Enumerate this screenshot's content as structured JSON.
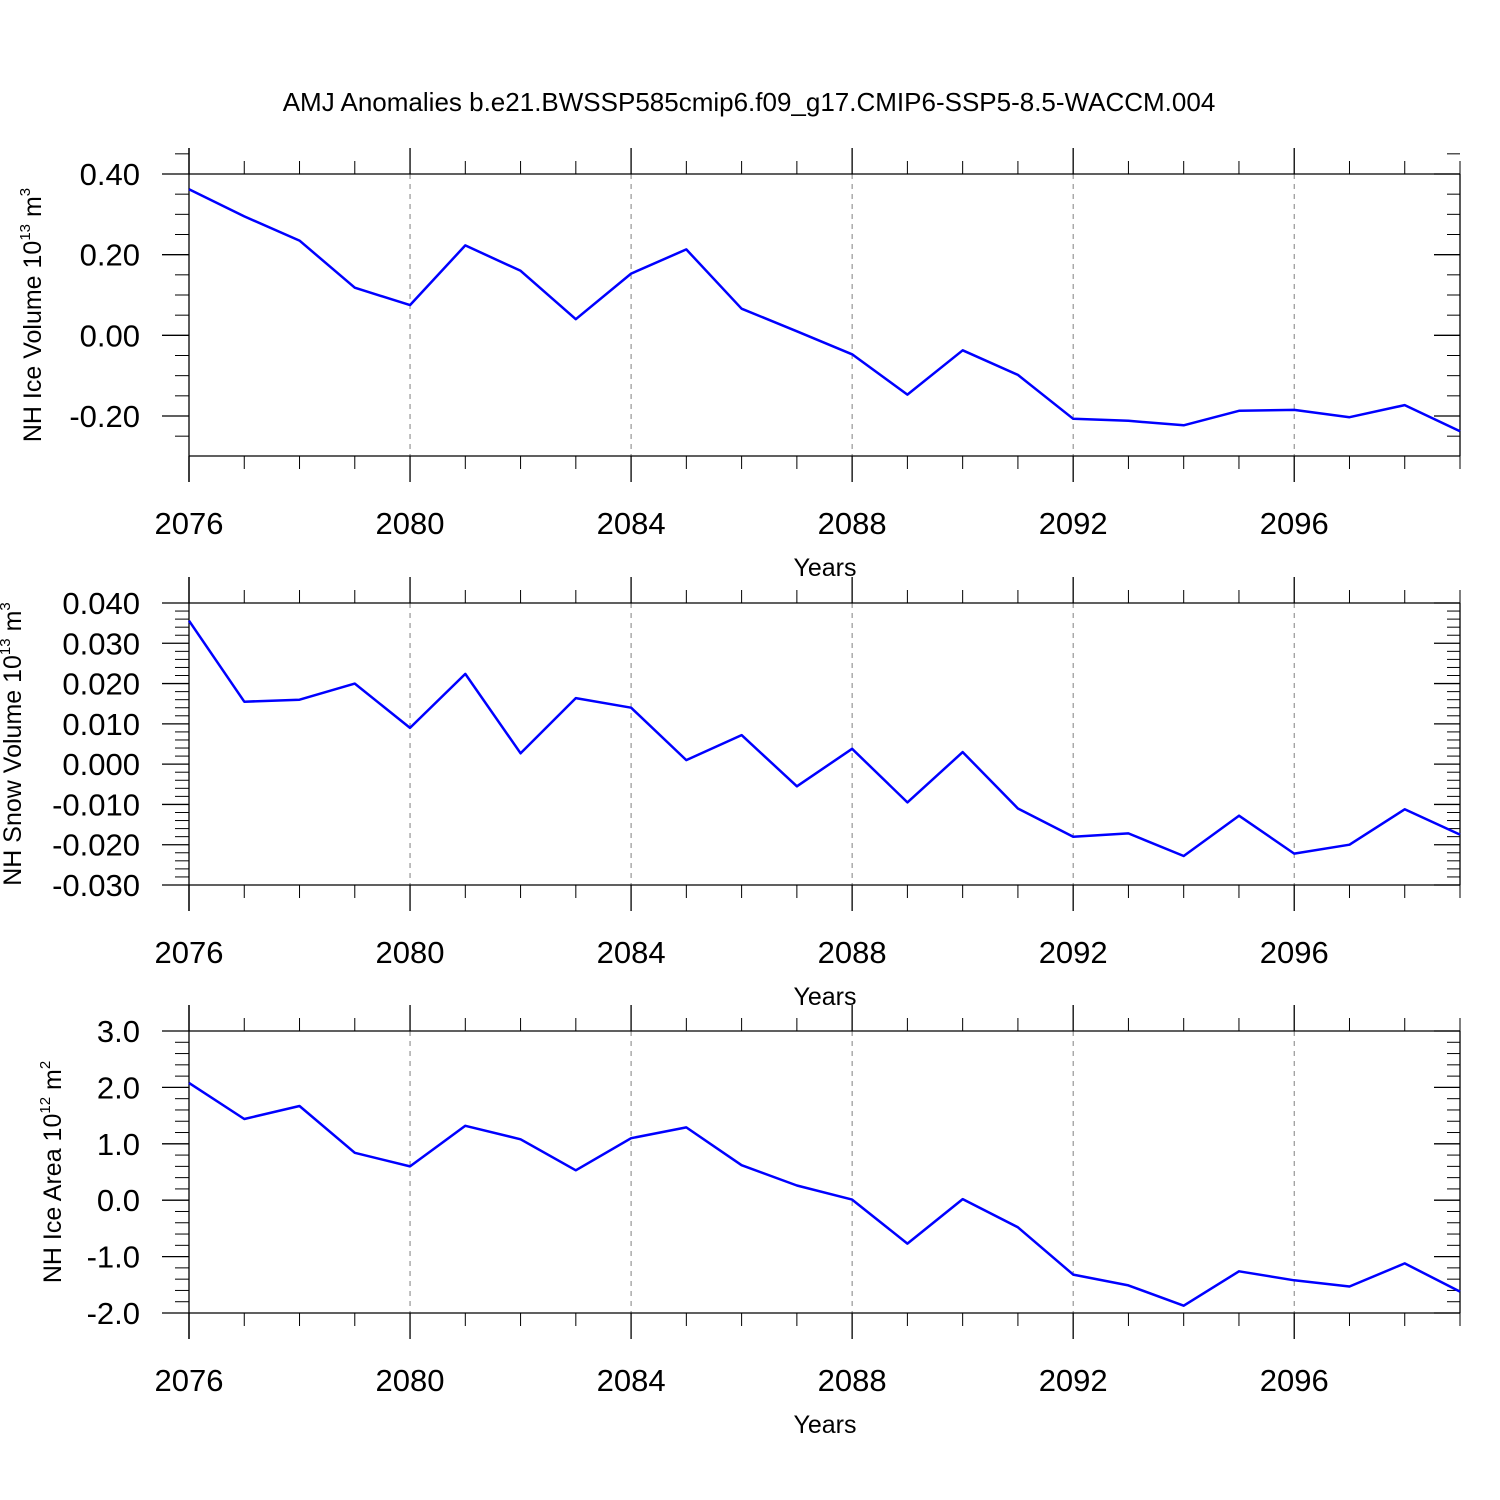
{
  "figure": {
    "title": "AMJ Anomalies b.e21.BWSSP585cmip6.f09_g17.CMIP6-SSP5-8.5-WACCM.004"
  },
  "style": {
    "line_color": "#0000ff",
    "axis_color": "#000000",
    "grid_color": "#808080"
  },
  "chart_data": [
    {
      "type": "line",
      "ylabel": {
        "text": "NH Ice Volume 10",
        "exp1": "13",
        "unit": " m",
        "exp2": "3"
      },
      "xlabel": "Years",
      "xlim": [
        2076,
        2099
      ],
      "ylim": [
        -0.3,
        0.45
      ],
      "yticks": [
        0.4,
        0.2,
        0.0,
        -0.2
      ],
      "ytick_labels": [
        "0.40",
        "0.20",
        "0.00",
        "-0.20"
      ],
      "yminor": [
        0.45,
        0.35,
        0.3,
        0.25,
        0.15,
        0.1,
        0.05,
        -0.05,
        -0.1,
        -0.15,
        -0.25
      ],
      "xticks": [
        2076,
        2080,
        2084,
        2088,
        2092,
        2096
      ],
      "xtick_labels": [
        "2076",
        "2080",
        "2084",
        "2088",
        "2092",
        "2096"
      ],
      "grid": "vertical dashed at major x ticks",
      "series": [
        {
          "x": [
            2076,
            2077,
            2078,
            2079,
            2080,
            2081,
            2082,
            2083,
            2084,
            2085,
            2086,
            2087,
            2088,
            2089,
            2090,
            2091,
            2092,
            2093,
            2094,
            2095,
            2096,
            2097,
            2098,
            2099
          ],
          "values": [
            0.362,
            0.295,
            0.235,
            0.118,
            0.075,
            0.223,
            0.16,
            0.04,
            0.153,
            0.213,
            0.066,
            0.01,
            -0.047,
            -0.147,
            -0.037,
            -0.098,
            -0.207,
            -0.212,
            -0.223,
            -0.187,
            -0.185,
            -0.203,
            -0.173,
            -0.238
          ]
        }
      ]
    },
    {
      "type": "line",
      "ylabel": {
        "text": "NH Snow Volume 10",
        "exp1": "13",
        "unit": " m",
        "exp2": "3"
      },
      "xlabel": "Years",
      "xlim": [
        2076,
        2099
      ],
      "ylim": [
        -0.03,
        0.04
      ],
      "yticks": [
        0.04,
        0.03,
        0.02,
        0.01,
        0.0,
        -0.01,
        -0.02,
        -0.03
      ],
      "ytick_labels": [
        "0.040",
        "0.030",
        "0.020",
        "0.010",
        "0.000",
        "-0.010",
        "-0.020",
        "-0.030"
      ],
      "yminor": [
        0.038,
        0.036,
        0.034,
        0.032,
        0.028,
        0.026,
        0.024,
        0.022,
        0.018,
        0.016,
        0.014,
        0.012,
        0.008,
        0.006,
        0.004,
        0.002,
        -0.002,
        -0.004,
        -0.006,
        -0.008,
        -0.012,
        -0.014,
        -0.016,
        -0.018,
        -0.022,
        -0.024,
        -0.026,
        -0.028
      ],
      "xticks": [
        2076,
        2080,
        2084,
        2088,
        2092,
        2096
      ],
      "xtick_labels": [
        "2076",
        "2080",
        "2084",
        "2088",
        "2092",
        "2096"
      ],
      "grid": "vertical dashed at major x ticks",
      "series": [
        {
          "x": [
            2076,
            2077,
            2078,
            2079,
            2080,
            2081,
            2082,
            2083,
            2084,
            2085,
            2086,
            2087,
            2088,
            2089,
            2090,
            2091,
            2092,
            2093,
            2094,
            2095,
            2096,
            2097,
            2098,
            2099
          ],
          "values": [
            0.0356,
            0.0155,
            0.016,
            0.02,
            0.009,
            0.0224,
            0.0027,
            0.0164,
            0.014,
            0.001,
            0.0072,
            -0.0055,
            0.0038,
            -0.0095,
            0.003,
            -0.011,
            -0.018,
            -0.0172,
            -0.0228,
            -0.0128,
            -0.0222,
            -0.02,
            -0.0112,
            -0.0175
          ]
        }
      ]
    },
    {
      "type": "line",
      "ylabel": {
        "text": "NH Ice Area 10",
        "exp1": "12",
        "unit": " m",
        "exp2": "2"
      },
      "xlabel": "Years",
      "xlim": [
        2076,
        2099
      ],
      "ylim": [
        -2.0,
        3.0
      ],
      "yticks": [
        3.0,
        2.0,
        1.0,
        0.0,
        -1.0,
        -2.0
      ],
      "ytick_labels": [
        "3.0",
        "2.0",
        "1.0",
        "0.0",
        "-1.0",
        "-2.0"
      ],
      "yminor": [
        2.8,
        2.6,
        2.4,
        2.2,
        1.8,
        1.6,
        1.4,
        1.2,
        0.8,
        0.6,
        0.4,
        0.2,
        -0.2,
        -0.4,
        -0.6,
        -0.8,
        -1.2,
        -1.4,
        -1.6,
        -1.8
      ],
      "xticks": [
        2076,
        2080,
        2084,
        2088,
        2092,
        2096
      ],
      "xtick_labels": [
        "2076",
        "2080",
        "2084",
        "2088",
        "2092",
        "2096"
      ],
      "grid": "vertical dashed at major x ticks",
      "series": [
        {
          "x": [
            2076,
            2077,
            2078,
            2079,
            2080,
            2081,
            2082,
            2083,
            2084,
            2085,
            2086,
            2087,
            2088,
            2089,
            2090,
            2091,
            2092,
            2093,
            2094,
            2095,
            2096,
            2097,
            2098,
            2099
          ],
          "values": [
            2.08,
            1.44,
            1.67,
            0.84,
            0.6,
            1.32,
            1.08,
            0.53,
            1.1,
            1.29,
            0.62,
            0.26,
            0.01,
            -0.77,
            0.02,
            -0.48,
            -1.32,
            -1.51,
            -1.87,
            -1.26,
            -1.42,
            -1.53,
            -1.12,
            -1.62
          ]
        }
      ]
    }
  ]
}
